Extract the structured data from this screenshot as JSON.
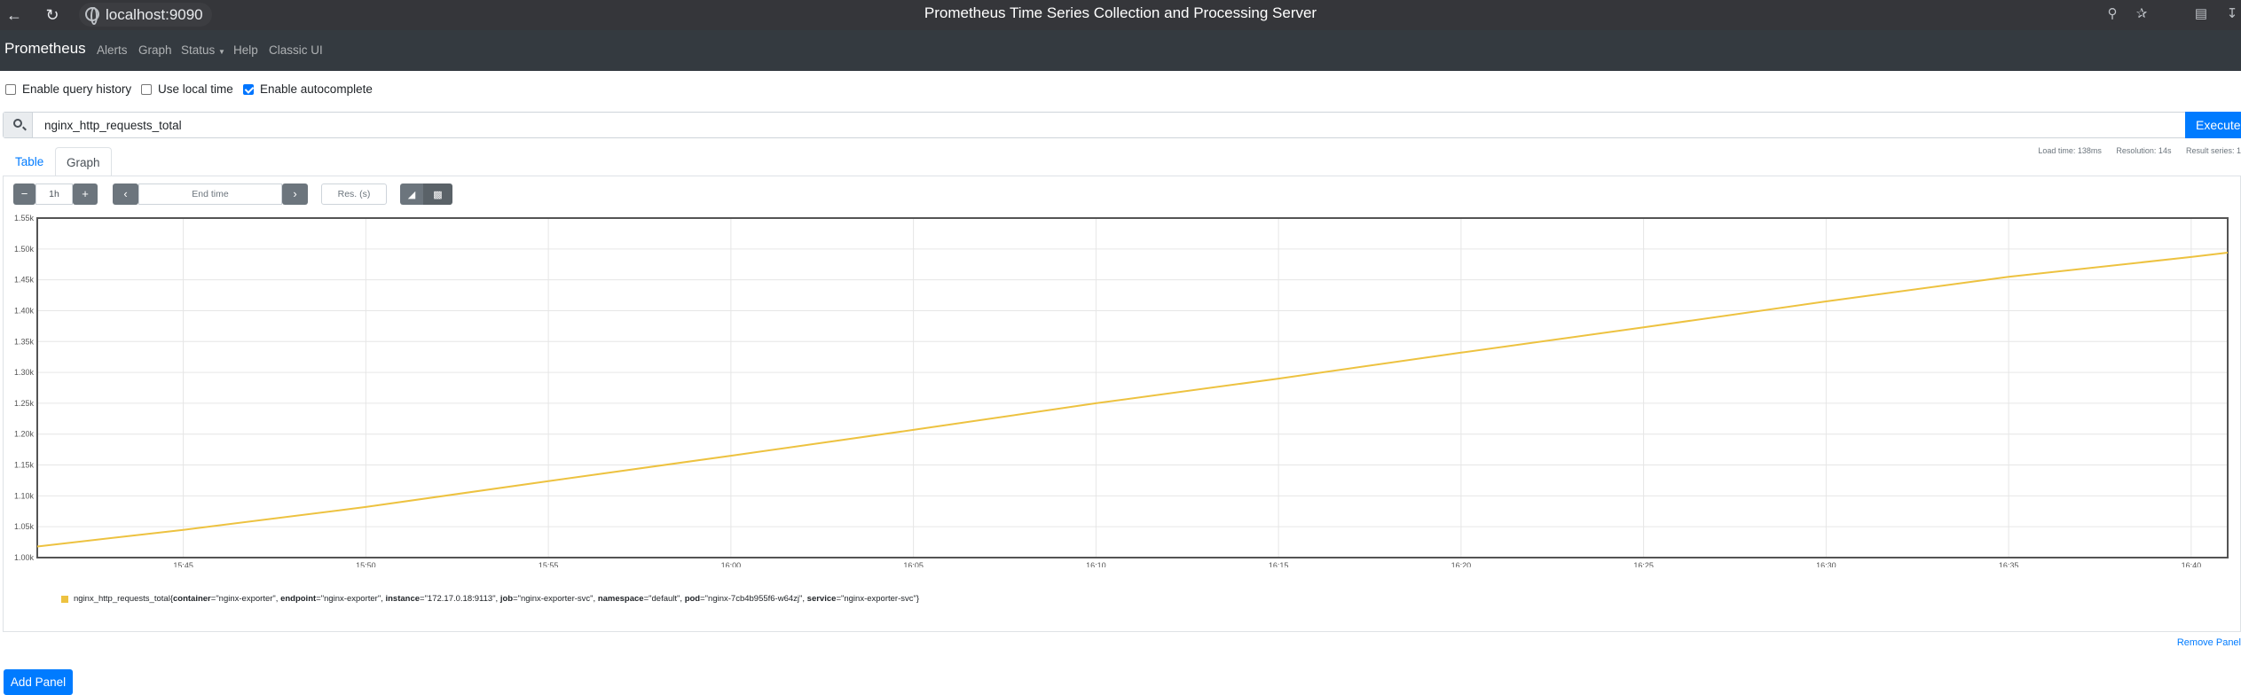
{
  "browser": {
    "url": "localhost:9090",
    "window_title": "Prometheus Time Series Collection and Processing Server"
  },
  "navbar": {
    "brand": "Prometheus",
    "links": [
      "Alerts",
      "Graph",
      "Status",
      "Help",
      "Classic UI"
    ]
  },
  "options": {
    "query_history": {
      "label": "Enable query history",
      "checked": false
    },
    "local_time": {
      "label": "Use local time",
      "checked": false
    },
    "autocomplete": {
      "label": "Enable autocomplete",
      "checked": true
    }
  },
  "expression": {
    "query": "nginx_http_requests_total",
    "execute_label": "Execute"
  },
  "stats": {
    "load_time": "Load time: 138ms",
    "resolution": "Resolution: 14s",
    "result_series": "Result series: 1"
  },
  "tabs": [
    "Table",
    "Graph"
  ],
  "graph_controls": {
    "range": "1h",
    "end_time_placeholder": "End time",
    "res_placeholder": "Res. (s)"
  },
  "chart_data": {
    "type": "line",
    "x_ticks": [
      "15:45",
      "15:50",
      "15:55",
      "16:00",
      "16:05",
      "16:10",
      "16:15",
      "16:20",
      "16:25",
      "16:30",
      "16:35",
      "16:40"
    ],
    "y_ticks": [
      "1.00k",
      "1.05k",
      "1.10k",
      "1.15k",
      "1.20k",
      "1.25k",
      "1.30k",
      "1.35k",
      "1.40k",
      "1.45k",
      "1.50k",
      "1.55k"
    ],
    "ylim": [
      1000,
      1550
    ],
    "xlim_minutes": [
      "15:41",
      "16:41"
    ],
    "grid": true,
    "series": [
      {
        "color": "#edc240",
        "x": [
          "15:41",
          "15:45",
          "15:50",
          "15:55",
          "16:00",
          "16:05",
          "16:10",
          "16:15",
          "16:20",
          "16:25",
          "16:30",
          "16:35",
          "16:40",
          "16:41"
        ],
        "values": [
          1018,
          1045,
          1082,
          1124,
          1165,
          1207,
          1250,
          1290,
          1332,
          1373,
          1415,
          1455,
          1487,
          1494
        ]
      }
    ]
  },
  "legend": {
    "metric": "nginx_http_requests_total",
    "labels": [
      {
        "key": "container",
        "value": "\"nginx-exporter\""
      },
      {
        "key": "endpoint",
        "value": "\"nginx-exporter\""
      },
      {
        "key": "instance",
        "value": "\"172.17.0.18:9113\""
      },
      {
        "key": "job",
        "value": "\"nginx-exporter-svc\""
      },
      {
        "key": "namespace",
        "value": "\"default\""
      },
      {
        "key": "pod",
        "value": "\"nginx-7cb4b955f6-w64zj\""
      },
      {
        "key": "service",
        "value": "\"nginx-exporter-svc\""
      }
    ]
  },
  "remove_panel_label": "Remove Panel",
  "add_panel_label": "Add Panel"
}
